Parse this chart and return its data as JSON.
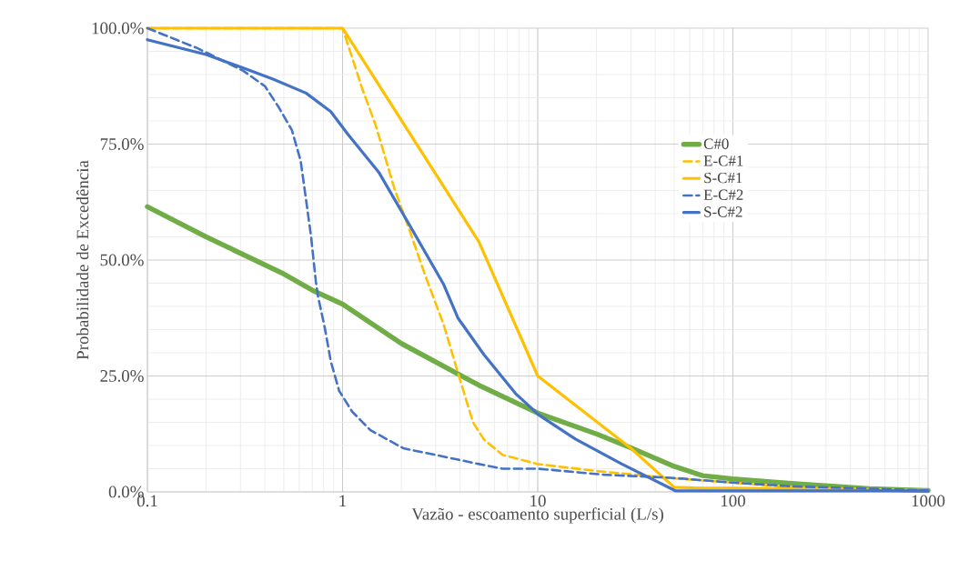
{
  "chart_data": {
    "type": "line",
    "xlabel": "Vazão - escoamento superficial (L/s)",
    "ylabel": "Probabilidade de Excedência",
    "log": "x",
    "xlim": [
      0.1,
      1000
    ],
    "xticks": [
      0.1,
      1,
      10,
      100,
      1000
    ],
    "ylim": [
      0,
      100
    ],
    "yticks": [
      {
        "value": 0,
        "label": "0.0%"
      },
      {
        "value": 25,
        "label": "25.0%"
      },
      {
        "value": 50,
        "label": "50.0%"
      },
      {
        "value": 75,
        "label": "75.0%"
      },
      {
        "value": 100,
        "label": "100.0%"
      }
    ],
    "grid": true,
    "legend": "right",
    "marker": "none",
    "series": [
      {
        "name": "C#0",
        "color": "#70ad47",
        "line_style": "solid",
        "x": [
          0.1,
          0.2,
          0.5,
          0.7,
          1,
          2,
          5,
          10,
          20,
          30,
          50,
          70,
          100,
          200,
          500,
          1000
        ],
        "values": [
          61.5,
          55,
          47,
          43.5,
          40.5,
          32,
          23,
          17,
          12.5,
          9.5,
          5.5,
          3.5,
          2.8,
          1.8,
          0.7,
          0.3
        ]
      },
      {
        "name": "E-C#1",
        "color": "#ffc000",
        "line_style": "dashed",
        "x": [
          0.1,
          1,
          1.26,
          1.48,
          1.84,
          2.2,
          2.65,
          3.3,
          3.9,
          4.66,
          5.3,
          6.6,
          10,
          20,
          50,
          100,
          200,
          1000
        ],
        "values": [
          100,
          100,
          87,
          79,
          65.5,
          56.5,
          46.7,
          36,
          25.7,
          15,
          11.3,
          8,
          6,
          4.5,
          2.9,
          2,
          1,
          0.3
        ]
      },
      {
        "name": "S-C#1",
        "color": "#ffc000",
        "line_style": "solid",
        "x": [
          0.1,
          1,
          5,
          10,
          30,
          50,
          70,
          100,
          1000
        ],
        "values": [
          100,
          100,
          53.9,
          25,
          9.4,
          1,
          0.8,
          0.8,
          0.3
        ]
      },
      {
        "name": "E-C#2",
        "color": "#4472c4",
        "line_style": "dashed",
        "x": [
          0.1,
          0.18,
          0.31,
          0.4,
          0.47,
          0.55,
          0.61,
          0.65,
          0.69,
          0.73,
          0.75,
          0.81,
          0.87,
          0.96,
          1.12,
          1.39,
          2.05,
          3.3,
          5,
          6.6,
          10,
          22,
          50,
          100,
          200,
          1000
        ],
        "values": [
          100,
          95.7,
          90.8,
          87.5,
          83,
          78,
          71.4,
          63,
          55,
          45.3,
          42,
          35.5,
          28.2,
          21.8,
          17.3,
          13.3,
          9.4,
          7.6,
          6,
          5,
          5,
          3.7,
          3,
          2,
          1.2,
          0.3
        ]
      },
      {
        "name": "S-C#2",
        "color": "#4472c4",
        "line_style": "solid",
        "x": [
          0.1,
          0.2,
          0.31,
          0.44,
          0.65,
          0.87,
          1.07,
          1.54,
          2.2,
          3.3,
          3.9,
          5.3,
          7.7,
          10.2,
          15.6,
          27,
          51,
          100,
          1000
        ],
        "values": [
          97.5,
          94.3,
          91.4,
          89,
          86,
          82,
          77,
          68.8,
          57.6,
          44.7,
          37.5,
          29.6,
          21.2,
          16.5,
          11.4,
          6,
          0.2,
          0.2,
          0.2
        ]
      }
    ]
  }
}
